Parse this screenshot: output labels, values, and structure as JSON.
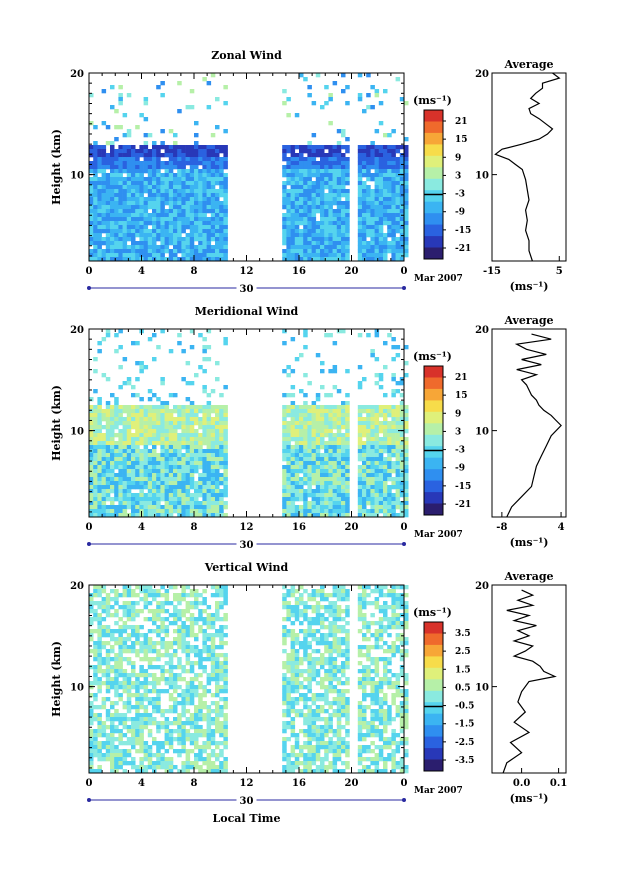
{
  "figure": {
    "x_axis_label": "Local Time",
    "date_label": "Mar 2007",
    "day_label": "30",
    "time_ticks": [
      "0",
      "4",
      "8",
      "12",
      "16",
      "20",
      "0"
    ],
    "height_ticks": [
      "20",
      "10"
    ],
    "units": "(ms⁻¹)"
  },
  "colorbar_palette": [
    "#2b1e6e",
    "#2838b8",
    "#2a62e0",
    "#2f8ff0",
    "#3bb4f2",
    "#55d4ee",
    "#8aeae0",
    "#b6f0a8",
    "#dff07a",
    "#f7dc4a",
    "#f7a637",
    "#ef6a2c",
    "#d8322a"
  ],
  "chart_data": [
    {
      "type": "heatmap",
      "title": "Zonal Wind",
      "xlabel": "",
      "ylabel": "Height (km)",
      "xlim": [
        0,
        24
      ],
      "ylim": [
        1.5,
        20
      ],
      "colorbar": {
        "units": "(ms⁻¹)",
        "ticks": [
          "21",
          "15",
          "9",
          "3",
          "-3",
          "-9",
          "-15",
          "-21"
        ],
        "range": [
          -24,
          24
        ]
      },
      "data_gaps_hours": [
        [
          10.5,
          14.5
        ],
        [
          19.8,
          20.2
        ]
      ],
      "average_profile": {
        "title": "Average",
        "xlabel": "(ms⁻¹)",
        "xticks": [
          "-15",
          "5"
        ],
        "xlim": [
          -15,
          7
        ],
        "height": [
          1.5,
          2.5,
          3.5,
          4.5,
          5.5,
          6.5,
          7.5,
          8.5,
          9.5,
          10.5,
          11.0,
          11.5,
          12.0,
          12.5,
          13.0,
          13.5,
          14.0,
          14.5,
          15.0,
          15.5,
          16.0,
          16.5,
          17.0,
          17.5,
          18.0,
          18.5,
          19.0,
          19.5,
          20.0
        ],
        "values": [
          -3,
          -4,
          -4,
          -5,
          -4.5,
          -5,
          -4,
          -4.5,
          -5,
          -6,
          -8,
          -10,
          -14,
          -12,
          -6,
          -1,
          1.5,
          3,
          1,
          -1,
          -3.5,
          -4,
          -1,
          -3.5,
          -2,
          0,
          0,
          5,
          3
        ]
      }
    },
    {
      "type": "heatmap",
      "title": "Meridional Wind",
      "xlabel": "",
      "ylabel": "Height (km)",
      "xlim": [
        0,
        24
      ],
      "ylim": [
        1.5,
        20
      ],
      "colorbar": {
        "units": "(ms⁻¹)",
        "ticks": [
          "21",
          "15",
          "9",
          "3",
          "-3",
          "-9",
          "-15",
          "-21"
        ],
        "range": [
          -24,
          24
        ]
      },
      "data_gaps_hours": [
        [
          10.5,
          14.5
        ],
        [
          19.8,
          20.2
        ]
      ],
      "average_profile": {
        "title": "Average",
        "xlabel": "(ms⁻¹)",
        "xticks": [
          "-8",
          "4"
        ],
        "xlim": [
          -10,
          5
        ],
        "height": [
          1.5,
          2.5,
          3.5,
          4.5,
          5.5,
          6.5,
          7.5,
          8.5,
          9.5,
          10.5,
          11.0,
          11.5,
          12.0,
          12.5,
          13.0,
          13.5,
          14.0,
          14.5,
          15.0,
          15.5,
          16.0,
          16.5,
          17.0,
          17.5,
          18.0,
          18.5,
          19.0,
          19.5
        ],
        "values": [
          -7,
          -6,
          -4,
          -2,
          -1.5,
          -1,
          0,
          1,
          2,
          4,
          3,
          2,
          0.5,
          -0.5,
          -1,
          -2,
          -2.5,
          -3,
          -4,
          -1,
          -5,
          0,
          -4,
          1,
          -3,
          -5,
          2,
          -2
        ]
      }
    },
    {
      "type": "heatmap",
      "title": "Vertical Wind",
      "xlabel": "Local Time",
      "ylabel": "Height (km)",
      "xlim": [
        0,
        24
      ],
      "ylim": [
        1.5,
        20
      ],
      "colorbar": {
        "units": "(ms⁻¹)",
        "ticks": [
          "3.5",
          "2.5",
          "1.5",
          "0.5",
          "-0.5",
          "-1.5",
          "-2.5",
          "-3.5"
        ],
        "range": [
          -4,
          4
        ]
      },
      "data_gaps_hours": [
        [
          10.5,
          14.5
        ],
        [
          19.8,
          20.2
        ]
      ],
      "average_profile": {
        "title": "Average",
        "xlabel": "(ms⁻¹)",
        "xticks": [
          "0.0",
          "0.1"
        ],
        "xlim": [
          -0.08,
          0.12
        ],
        "height": [
          1.5,
          2.5,
          3.5,
          4.5,
          5.5,
          6.5,
          7.5,
          8.5,
          9.5,
          10.5,
          11.0,
          11.5,
          12.0,
          12.5,
          13.0,
          13.5,
          14.0,
          14.5,
          15.0,
          15.5,
          16.0,
          16.5,
          17.0,
          17.5,
          18.0,
          18.5,
          19.0,
          19.5
        ],
        "values": [
          -0.05,
          -0.04,
          0.0,
          -0.03,
          0.02,
          -0.02,
          0.01,
          -0.01,
          0.0,
          0.02,
          0.09,
          0.06,
          0.05,
          0.03,
          -0.02,
          0.01,
          0.03,
          -0.02,
          0.02,
          -0.01,
          0.04,
          -0.02,
          0.02,
          -0.04,
          0.03,
          -0.01,
          0.03,
          0.0
        ]
      }
    }
  ]
}
